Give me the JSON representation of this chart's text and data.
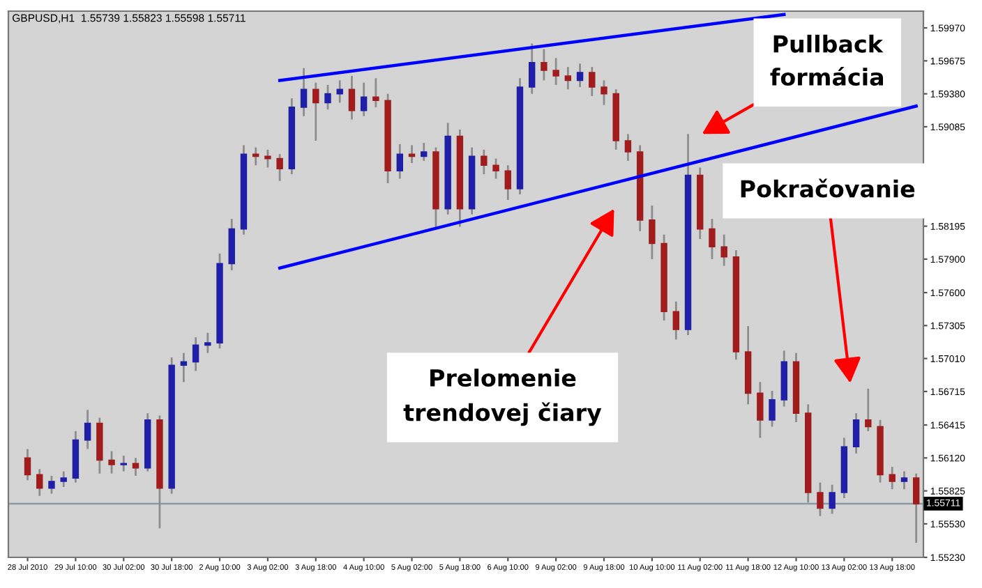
{
  "chart_data": {
    "type": "candlestick",
    "title": "GBPUSD,H1  1.55739 1.55823 1.55598 1.55711",
    "categories": [
      "28 Jul 2010",
      null,
      null,
      null,
      "29 Jul 10:00",
      null,
      null,
      null,
      "30 Jul 02:00",
      null,
      null,
      null,
      "30 Jul 18:00",
      null,
      null,
      null,
      "2 Aug 10:00",
      null,
      null,
      null,
      "3 Aug 02:00",
      null,
      null,
      null,
      "3 Aug 18:00",
      null,
      null,
      null,
      "4 Aug 10:00",
      null,
      null,
      null,
      "5 Aug 02:00",
      null,
      null,
      null,
      "5 Aug 18:00",
      null,
      null,
      null,
      "6 Aug 10:00",
      null,
      null,
      null,
      "9 Aug 02:00",
      null,
      null,
      null,
      "9 Aug 18:00",
      null,
      null,
      null,
      "10 Aug 10:00",
      null,
      null,
      null,
      "11 Aug 02:00",
      null,
      null,
      null,
      "11 Aug 18:00",
      null,
      null,
      null,
      "12 Aug 10:00",
      null,
      null,
      null,
      "13 Aug 02:00",
      null,
      null,
      null,
      "13 Aug 18:00",
      null,
      null
    ],
    "series": [
      {
        "type": "candlestick",
        "ohlc": [
          [
            1.5612,
            1.562,
            1.5592,
            1.5597
          ],
          [
            1.5597,
            1.5602,
            1.5578,
            1.5585
          ],
          [
            1.5585,
            1.5596,
            1.558,
            1.5591
          ],
          [
            1.5591,
            1.56,
            1.5586,
            1.5594
          ],
          [
            1.5594,
            1.5636,
            1.559,
            1.5628
          ],
          [
            1.5628,
            1.5655,
            1.562,
            1.5643
          ],
          [
            1.5643,
            1.5648,
            1.5598,
            1.561
          ],
          [
            1.561,
            1.5618,
            1.5598,
            1.5606
          ],
          [
            1.5606,
            1.5614,
            1.56,
            1.5607
          ],
          [
            1.5607,
            1.5612,
            1.5596,
            1.5603
          ],
          [
            1.5603,
            1.5652,
            1.56,
            1.5646
          ],
          [
            1.5646,
            1.565,
            1.5549,
            1.5585
          ],
          [
            1.5585,
            1.5702,
            1.558,
            1.5695
          ],
          [
            1.5695,
            1.5706,
            1.568,
            1.5698
          ],
          [
            1.5698,
            1.572,
            1.569,
            1.5713
          ],
          [
            1.5713,
            1.5724,
            1.5706,
            1.5715
          ],
          [
            1.5715,
            1.5795,
            1.571,
            1.5786
          ],
          [
            1.5786,
            1.5826,
            1.578,
            1.5817
          ],
          [
            1.5817,
            1.5892,
            1.5812,
            1.5884
          ],
          [
            1.5884,
            1.589,
            1.5874,
            1.5882
          ],
          [
            1.5882,
            1.5888,
            1.5872,
            1.588
          ],
          [
            1.588,
            1.5884,
            1.586,
            1.5871
          ],
          [
            1.5871,
            1.5934,
            1.5866,
            1.5926
          ],
          [
            1.5926,
            1.5961,
            1.5918,
            1.5942
          ],
          [
            1.5942,
            1.5948,
            1.5896,
            1.593
          ],
          [
            1.593,
            1.5946,
            1.5924,
            1.5938
          ],
          [
            1.5938,
            1.595,
            1.593,
            1.5942
          ],
          [
            1.5942,
            1.5954,
            1.5915,
            1.5923
          ],
          [
            1.5923,
            1.5948,
            1.5918,
            1.5935
          ],
          [
            1.5935,
            1.5952,
            1.5926,
            1.5932
          ],
          [
            1.5932,
            1.5938,
            1.5858,
            1.5869
          ],
          [
            1.5869,
            1.5893,
            1.5862,
            1.5884
          ],
          [
            1.5884,
            1.5892,
            1.5876,
            1.5882
          ],
          [
            1.5882,
            1.5894,
            1.5878,
            1.5886
          ],
          [
            1.5886,
            1.589,
            1.5817,
            1.5835
          ],
          [
            1.5835,
            1.5912,
            1.583,
            1.59
          ],
          [
            1.59,
            1.5906,
            1.5819,
            1.5835
          ],
          [
            1.5835,
            1.589,
            1.583,
            1.5882
          ],
          [
            1.5882,
            1.5888,
            1.5866,
            1.5874
          ],
          [
            1.5874,
            1.588,
            1.5862,
            1.5869
          ],
          [
            1.5869,
            1.5874,
            1.5843,
            1.5853
          ],
          [
            1.5853,
            1.5952,
            1.5848,
            1.5944
          ],
          [
            1.5944,
            1.5983,
            1.5938,
            1.5966
          ],
          [
            1.5966,
            1.5978,
            1.595,
            1.5959
          ],
          [
            1.5959,
            1.597,
            1.5946,
            1.5954
          ],
          [
            1.5954,
            1.5962,
            1.5942,
            1.595
          ],
          [
            1.595,
            1.5965,
            1.5944,
            1.5957
          ],
          [
            1.5957,
            1.5962,
            1.5936,
            1.5944
          ],
          [
            1.5944,
            1.595,
            1.5928,
            1.5938
          ],
          [
            1.5938,
            1.5942,
            1.5888,
            1.5896
          ],
          [
            1.5896,
            1.5902,
            1.5878,
            1.5886
          ],
          [
            1.5886,
            1.5892,
            1.5815,
            1.5825
          ],
          [
            1.5825,
            1.5838,
            1.579,
            1.5804
          ],
          [
            1.5804,
            1.5812,
            1.5735,
            1.5743
          ],
          [
            1.5743,
            1.5752,
            1.5718,
            1.5727
          ],
          [
            1.5727,
            1.5902,
            1.5722,
            1.5865
          ],
          [
            1.5865,
            1.5872,
            1.5808,
            1.5817
          ],
          [
            1.5817,
            1.5826,
            1.579,
            1.5801
          ],
          [
            1.5801,
            1.5812,
            1.5784,
            1.5792
          ],
          [
            1.5792,
            1.5798,
            1.57,
            1.5707
          ],
          [
            1.5707,
            1.573,
            1.566,
            1.567
          ],
          [
            1.567,
            1.568,
            1.563,
            1.5646
          ],
          [
            1.5646,
            1.5672,
            1.564,
            1.5664
          ],
          [
            1.5664,
            1.5708,
            1.5658,
            1.5698
          ],
          [
            1.5698,
            1.5706,
            1.5644,
            1.5652
          ],
          [
            1.5652,
            1.566,
            1.5572,
            1.5581
          ],
          [
            1.5581,
            1.559,
            1.556,
            1.5567
          ],
          [
            1.5567,
            1.5588,
            1.5562,
            1.5581
          ],
          [
            1.5581,
            1.563,
            1.5576,
            1.5622
          ],
          [
            1.5622,
            1.5652,
            1.5616,
            1.5646
          ],
          [
            1.5646,
            1.5674,
            1.5636,
            1.564
          ],
          [
            1.564,
            1.5646,
            1.559,
            1.5597
          ],
          [
            1.5597,
            1.5604,
            1.5584,
            1.5591
          ],
          [
            1.5591,
            1.56,
            1.5584,
            1.5594
          ],
          [
            1.5594,
            1.5598,
            1.5536,
            1.5571
          ]
        ],
        "colors": [
          "#a11c1c",
          "#a11c1c",
          "#1f1fa8",
          "#1f1fa8",
          "#1f1fa8",
          "#1f1fa8",
          "#a11c1c",
          "#a11c1c",
          "#1f1fa8",
          "#a11c1c",
          "#1f1fa8",
          "#a11c1c",
          "#1f1fa8",
          "#1f1fa8",
          "#1f1fa8",
          "#1f1fa8",
          "#1f1fa8",
          "#1f1fa8",
          "#1f1fa8",
          "#a11c1c",
          "#a11c1c",
          "#a11c1c",
          "#1f1fa8",
          "#1f1fa8",
          "#a11c1c",
          "#1f1fa8",
          "#1f1fa8",
          "#a11c1c",
          "#1f1fa8",
          "#a11c1c",
          "#a11c1c",
          "#1f1fa8",
          "#a11c1c",
          "#1f1fa8",
          "#a11c1c",
          "#1f1fa8",
          "#a11c1c",
          "#1f1fa8",
          "#a11c1c",
          "#a11c1c",
          "#a11c1c",
          "#1f1fa8",
          "#1f1fa8",
          "#a11c1c",
          "#a11c1c",
          "#a11c1c",
          "#1f1fa8",
          "#a11c1c",
          "#a11c1c",
          "#a11c1c",
          "#a11c1c",
          "#a11c1c",
          "#a11c1c",
          "#a11c1c",
          "#a11c1c",
          "#1f1fa8",
          "#a11c1c",
          "#a11c1c",
          "#a11c1c",
          "#a11c1c",
          "#a11c1c",
          "#a11c1c",
          "#1f1fa8",
          "#1f1fa8",
          "#a11c1c",
          "#a11c1c",
          "#a11c1c",
          "#1f1fa8",
          "#1f1fa8",
          "#1f1fa8",
          "#a11c1c",
          "#a11c1c",
          "#a11c1c",
          "#1f1fa8",
          "#a11c1c"
        ]
      },
      {
        "type": "line",
        "color": "#0000ff",
        "values": [
          null,
          null,
          null,
          null,
          null,
          null,
          null,
          null,
          null,
          null,
          null,
          null,
          null,
          null,
          null,
          null,
          null,
          null,
          null,
          null,
          null,
          1.595,
          null,
          null,
          null,
          null,
          null,
          null,
          null,
          null,
          null,
          null,
          null,
          null,
          null,
          null,
          null,
          null,
          null,
          null,
          null,
          null,
          null,
          null,
          null,
          null,
          null,
          null,
          null,
          null,
          null,
          null,
          null,
          null,
          null,
          null,
          null,
          null,
          null,
          null,
          null,
          null,
          null,
          1.6009,
          null,
          null,
          null,
          null,
          null,
          null,
          null,
          null,
          null,
          null,
          null
        ]
      },
      {
        "type": "line",
        "color": "#0000ff",
        "values": [
          null,
          null,
          null,
          null,
          null,
          null,
          null,
          null,
          null,
          null,
          null,
          null,
          null,
          null,
          null,
          null,
          null,
          null,
          null,
          null,
          null,
          1.5782,
          null,
          null,
          null,
          null,
          null,
          null,
          null,
          null,
          null,
          null,
          null,
          null,
          null,
          null,
          null,
          null,
          null,
          null,
          null,
          null,
          null,
          null,
          null,
          null,
          null,
          null,
          null,
          null,
          null,
          null,
          null,
          null,
          null,
          null,
          null,
          null,
          null,
          null,
          null,
          null,
          null,
          null,
          null,
          null,
          null,
          null,
          null,
          null,
          null,
          null,
          null,
          null,
          1.5927
        ]
      }
    ],
    "ylim": [
      1.5523,
      1.6012
    ],
    "yticks": [
      {
        "value": 1.5523,
        "label": "1.55230"
      },
      {
        "value": 1.5553,
        "label": "1.55530"
      },
      1.55825,
      {
        "value": 1.5612,
        "label": "1.56120"
      },
      1.56415,
      1.56715,
      {
        "value": 1.5701,
        "label": "1.57010"
      },
      1.57305,
      {
        "value": 1.576,
        "label": "1.57600"
      },
      {
        "value": 1.579,
        "label": "1.57900"
      },
      1.58195,
      1.59085,
      {
        "value": 1.5938,
        "label": "1.59380"
      },
      1.59675,
      {
        "value": 1.5997,
        "label": "1.59970"
      }
    ],
    "ref_lines": [
      {
        "axis": "y",
        "value": 1.55711,
        "label": "1.55711",
        "color": "#8a9aa8"
      }
    ],
    "annotations": [
      {
        "text": "Pullback\nformácia",
        "y": 1.5902
      },
      "Pokračovanie",
      "Prelomenie\ntrendovej čiary"
    ],
    "grid": false,
    "legend": false
  }
}
